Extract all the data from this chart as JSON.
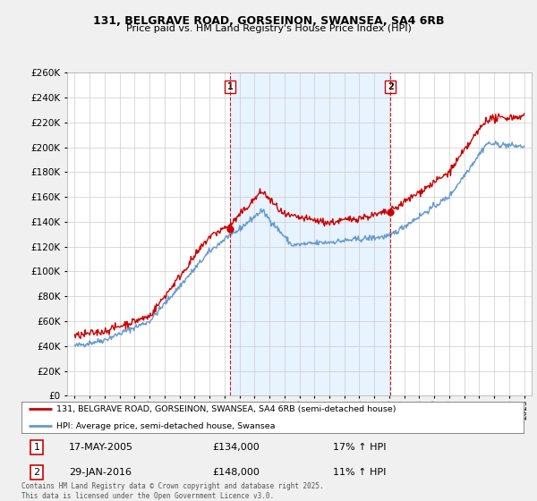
{
  "title1": "131, BELGRAVE ROAD, GORSEINON, SWANSEA, SA4 6RB",
  "title2": "Price paid vs. HM Land Registry's House Price Index (HPI)",
  "legend_label_red": "131, BELGRAVE ROAD, GORSEINON, SWANSEA, SA4 6RB (semi-detached house)",
  "legend_label_blue": "HPI: Average price, semi-detached house, Swansea",
  "annotation1_date": "17-MAY-2005",
  "annotation1_price": "£134,000",
  "annotation1_hpi": "17% ↑ HPI",
  "annotation2_date": "29-JAN-2016",
  "annotation2_price": "£148,000",
  "annotation2_hpi": "11% ↑ HPI",
  "vline1_x": 2005.37,
  "vline2_x": 2016.08,
  "marker1_y": 134000,
  "marker2_y": 148000,
  "footer": "Contains HM Land Registry data © Crown copyright and database right 2025.\nThis data is licensed under the Open Government Licence v3.0.",
  "ylim": [
    0,
    260000
  ],
  "xlim": [
    1994.5,
    2025.5
  ],
  "background_color": "#f0f0f0",
  "plot_bg": "#ffffff",
  "shade_color": "#ddeeff",
  "red_color": "#cc0000",
  "blue_color": "#6699cc",
  "grid_color": "#cccccc",
  "title_fontsize": 9,
  "subtitle_fontsize": 8
}
